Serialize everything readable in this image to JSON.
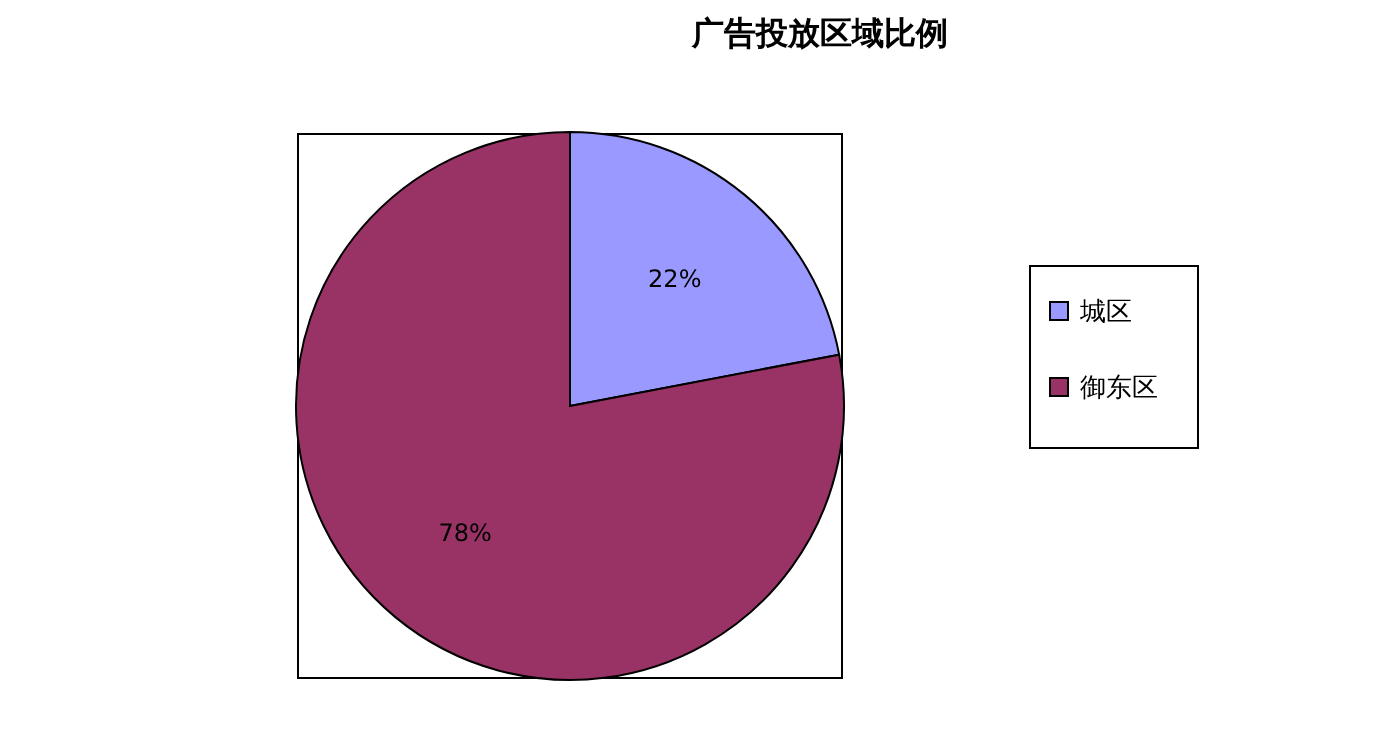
{
  "chart_data": {
    "type": "pie",
    "title": "广告投放区域比例",
    "categories": [
      "城区",
      "御东区"
    ],
    "values": [
      22,
      78
    ],
    "colors": [
      "#9999ff",
      "#993366"
    ],
    "value_labels": [
      "22%",
      "78%"
    ],
    "legend": "right"
  }
}
